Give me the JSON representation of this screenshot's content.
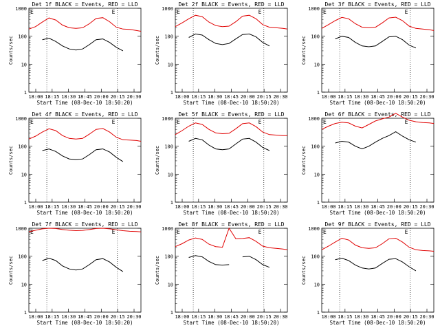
{
  "figure": {
    "xlabel": "Start Time (08-Dec-10 18:50:20)",
    "ylabel": "Counts/sec",
    "x_tick_labels": [
      "18:00",
      "18:15",
      "18:30",
      "18:45",
      "20:00",
      "20:15",
      "20:30"
    ],
    "y_tick_labels": [
      "1",
      "10",
      "100",
      "1000"
    ],
    "ylim": [
      1,
      1000
    ],
    "y_scale": "log",
    "colors": {
      "events": "#000000",
      "lld": "#e00000",
      "background": "#ffffff"
    },
    "marker_label": "E"
  },
  "chart_data": [
    {
      "type": "line",
      "title": "Det 1f BLACK = Events, RED = LLD",
      "x": [
        0,
        0.06,
        0.12,
        0.18,
        0.24,
        0.3,
        0.36,
        0.42,
        0.48,
        0.54,
        0.6,
        0.66,
        0.72,
        0.78,
        0.84,
        0.9,
        0.96,
        1.0
      ],
      "series": [
        {
          "name": "Events",
          "values": [
            null,
            null,
            75,
            85,
            65,
            45,
            35,
            32,
            35,
            50,
            75,
            80,
            60,
            40,
            30,
            null,
            null,
            null
          ]
        },
        {
          "name": "LLD",
          "values": [
            180,
            220,
            320,
            450,
            380,
            250,
            200,
            190,
            200,
            280,
            430,
            460,
            330,
            210,
            180,
            175,
            160,
            150
          ]
        }
      ]
    },
    {
      "type": "line",
      "title": "Det 2f BLACK = Events, RED = LLD",
      "x": [
        0,
        0.06,
        0.12,
        0.18,
        0.24,
        0.3,
        0.36,
        0.42,
        0.48,
        0.54,
        0.6,
        0.66,
        0.72,
        0.78,
        0.84,
        0.9,
        0.96,
        1.0
      ],
      "series": [
        {
          "name": "Events",
          "values": [
            null,
            null,
            90,
            120,
            110,
            75,
            55,
            50,
            55,
            80,
            115,
            120,
            95,
            60,
            45,
            null,
            null,
            null
          ]
        },
        {
          "name": "LLD",
          "values": [
            220,
            300,
            420,
            560,
            500,
            320,
            240,
            220,
            230,
            330,
            520,
            560,
            420,
            260,
            210,
            200,
            190,
            180
          ]
        }
      ]
    },
    {
      "type": "line",
      "title": "Det 3f BLACK = Events, RED = LLD",
      "x": [
        0,
        0.06,
        0.12,
        0.18,
        0.24,
        0.3,
        0.36,
        0.42,
        0.48,
        0.54,
        0.6,
        0.66,
        0.72,
        0.78,
        0.84,
        0.9,
        0.96,
        1.0
      ],
      "series": [
        {
          "name": "Events",
          "values": [
            null,
            null,
            80,
            100,
            90,
            60,
            45,
            42,
            45,
            65,
            95,
            100,
            75,
            48,
            38,
            null,
            null,
            null
          ]
        },
        {
          "name": "LLD",
          "values": [
            190,
            260,
            360,
            470,
            420,
            280,
            210,
            200,
            210,
            300,
            450,
            480,
            360,
            230,
            190,
            180,
            170,
            160
          ]
        }
      ]
    },
    {
      "type": "line",
      "title": "Det 4f BLACK = Events, RED = LLD",
      "x": [
        0,
        0.06,
        0.12,
        0.18,
        0.24,
        0.3,
        0.36,
        0.42,
        0.48,
        0.54,
        0.6,
        0.66,
        0.72,
        0.78,
        0.84,
        0.9,
        0.96,
        1.0
      ],
      "series": [
        {
          "name": "Events",
          "values": [
            null,
            null,
            70,
            80,
            65,
            45,
            35,
            33,
            35,
            50,
            75,
            80,
            62,
            40,
            28,
            null,
            null,
            null
          ]
        },
        {
          "name": "LLD",
          "values": [
            180,
            230,
            320,
            420,
            360,
            240,
            190,
            180,
            190,
            270,
            400,
            430,
            320,
            210,
            170,
            165,
            160,
            150
          ]
        }
      ]
    },
    {
      "type": "line",
      "title": "Det 5f BLACK = Events, RED = LLD",
      "x": [
        0,
        0.06,
        0.12,
        0.18,
        0.24,
        0.3,
        0.36,
        0.42,
        0.48,
        0.54,
        0.6,
        0.66,
        0.72,
        0.78,
        0.84,
        0.9,
        0.96,
        1.0
      ],
      "series": [
        {
          "name": "Events",
          "values": [
            null,
            null,
            150,
            190,
            170,
            110,
            80,
            75,
            80,
            120,
            180,
            190,
            140,
            90,
            70,
            null,
            null,
            null
          ]
        },
        {
          "name": "LLD",
          "values": [
            260,
            360,
            520,
            680,
            600,
            400,
            300,
            280,
            290,
            420,
            640,
            680,
            500,
            320,
            260,
            250,
            240,
            240
          ]
        }
      ]
    },
    {
      "type": "line",
      "title": "Det 6f BLACK = Events, RED = LLD",
      "x": [
        0,
        0.06,
        0.12,
        0.18,
        0.24,
        0.3,
        0.36,
        0.42,
        0.48,
        0.54,
        0.6,
        0.66,
        0.72,
        0.78,
        0.84,
        0.9,
        0.96,
        1.0
      ],
      "series": [
        {
          "name": "Events",
          "values": [
            null,
            null,
            130,
            150,
            140,
            100,
            80,
            100,
            140,
            190,
            240,
            330,
            230,
            170,
            140,
            null,
            null,
            null
          ]
        },
        {
          "name": "LLD",
          "values": [
            400,
            520,
            650,
            720,
            680,
            520,
            450,
            600,
            800,
            950,
            1100,
            1500,
            1100,
            850,
            750,
            700,
            680,
            650
          ]
        }
      ]
    },
    {
      "type": "line",
      "title": "Det 7f BLACK = Events, RED = LLD",
      "x": [
        0,
        0.06,
        0.12,
        0.18,
        0.24,
        0.3,
        0.36,
        0.42,
        0.48,
        0.54,
        0.6,
        0.66,
        0.72,
        0.78,
        0.84,
        0.9,
        0.96,
        1.0
      ],
      "series": [
        {
          "name": "Events",
          "values": [
            null,
            null,
            70,
            85,
            70,
            45,
            35,
            32,
            35,
            50,
            75,
            82,
            62,
            40,
            28,
            null,
            null,
            null
          ]
        },
        {
          "name": "LLD",
          "values": [
            750,
            850,
            950,
            1000,
            980,
            900,
            850,
            820,
            840,
            900,
            980,
            1000,
            950,
            880,
            820,
            780,
            760,
            740
          ]
        }
      ]
    },
    {
      "type": "line",
      "title": "Det 8f BLACK = Events, RED = LLD",
      "x": [
        0,
        0.06,
        0.12,
        0.18,
        0.24,
        0.3,
        0.36,
        0.42,
        0.48,
        0.54,
        0.6,
        0.66,
        0.72,
        0.78,
        0.84,
        0.9,
        0.96,
        1.0
      ],
      "series": [
        {
          "name": "Events",
          "values": [
            null,
            null,
            90,
            105,
            95,
            65,
            50,
            48,
            50,
            null,
            95,
            100,
            75,
            50,
            40,
            null,
            null,
            null
          ]
        },
        {
          "name": "LLD",
          "values": [
            220,
            280,
            380,
            450,
            400,
            270,
            220,
            210,
            1000,
            420,
            430,
            460,
            340,
            230,
            200,
            190,
            180,
            170
          ]
        }
      ]
    },
    {
      "type": "line",
      "title": "Det 9f BLACK = Events, RED = LLD",
      "x": [
        0,
        0.06,
        0.12,
        0.18,
        0.24,
        0.3,
        0.36,
        0.42,
        0.48,
        0.54,
        0.6,
        0.66,
        0.72,
        0.78,
        0.84,
        0.9,
        0.96,
        1.0
      ],
      "series": [
        {
          "name": "Events",
          "values": [
            null,
            null,
            75,
            85,
            70,
            48,
            38,
            35,
            38,
            55,
            78,
            82,
            62,
            42,
            30,
            null,
            null,
            null
          ]
        },
        {
          "name": "LLD",
          "values": [
            170,
            230,
            320,
            440,
            380,
            250,
            200,
            190,
            200,
            280,
            420,
            440,
            320,
            210,
            170,
            160,
            155,
            150
          ]
        }
      ]
    }
  ]
}
